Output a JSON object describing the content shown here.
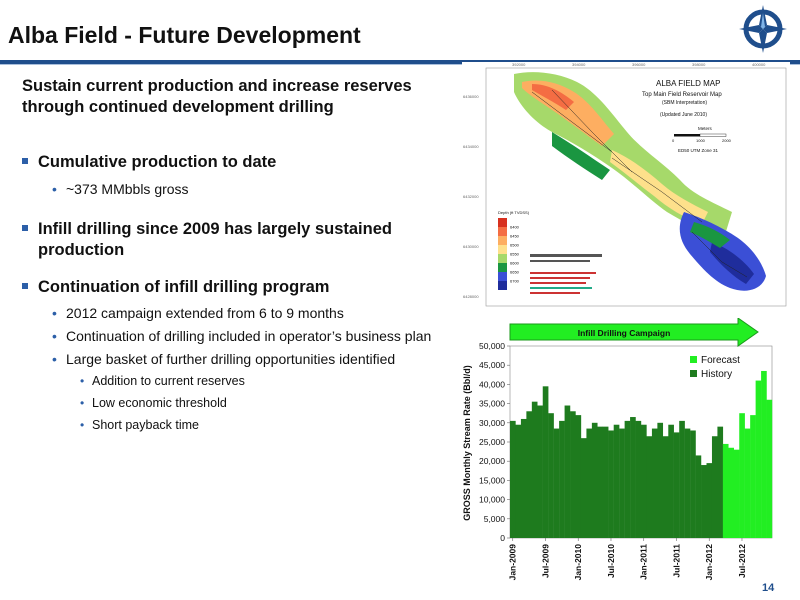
{
  "slide": {
    "title": "Alba Field - Future Development",
    "subtitle": "Sustain current production and increase reserves through continued development drilling",
    "page_number": "14"
  },
  "bullets": [
    {
      "text": "Cumulative production to date"
    },
    {
      "text": "~373 MMbbls gross"
    },
    {
      "text": "Infill drilling since 2009 has largely sustained production"
    },
    {
      "text": "Continuation of infill drilling program"
    },
    {
      "text": "2012 campaign extended from 6 to 9 months"
    },
    {
      "text": "Continuation of drilling included in operator’s business plan"
    },
    {
      "text": "Large basket of further drilling opportunities identified"
    },
    {
      "text": "Addition to current reserves"
    },
    {
      "text": "Low economic threshold"
    },
    {
      "text": "Short payback time"
    }
  ],
  "map": {
    "title": "ALBA FIELD MAP",
    "subtitle": "Top Main Field Reservoir Map",
    "note1": "(SBM Interpretation)",
    "note2": "(Updated June 2010)",
    "scale_label": "Meters",
    "scale_ticks": [
      "0",
      "1000",
      "2000"
    ],
    "datum": "ED50 UTM Zone 31",
    "legend_title": "Depth (ft TVDSS)",
    "legend_values": [
      "6400",
      "6450",
      "6500",
      "6550",
      "6600",
      "6650",
      "6700"
    ],
    "legend_colors": [
      "#d7301f",
      "#f46d43",
      "#fdae61",
      "#fee08b",
      "#a6d96a",
      "#1a9641",
      "#3b4fd6",
      "#1f2d9c"
    ],
    "top_ticks": [
      "392000",
      "394000",
      "396000",
      "398000",
      "400000"
    ],
    "left_ticks": [
      "6436000",
      "6434000",
      "6432000",
      "6430000",
      "6428000"
    ]
  },
  "chart_data": {
    "type": "bar",
    "ylabel": "GROSS Monthly Stream Rate (Bbl/d)",
    "ylim": [
      0,
      50000
    ],
    "yticks": [
      "0",
      "5,000",
      "10,000",
      "15,000",
      "20,000",
      "25,000",
      "30,000",
      "35,000",
      "40,000",
      "45,000",
      "50,000"
    ],
    "xtick_labels": [
      "Jan-2009",
      "Jul-2009",
      "Jan-2010",
      "Jul-2010",
      "Jan-2011",
      "Jul-2011",
      "Jan-2012",
      "Jul-2012"
    ],
    "banner": "Infill Drilling Campaign",
    "legend": "top-right",
    "series": [
      {
        "name": "History",
        "color": "#1e7b1e",
        "values": [
          30500,
          29500,
          31000,
          33000,
          35500,
          34500,
          39500,
          32500,
          28500,
          30500,
          34500,
          33000,
          32000,
          26000,
          28500,
          30000,
          29000,
          29000,
          28000,
          29500,
          28500,
          30500,
          31500,
          30500,
          29500,
          26500,
          28500,
          30000,
          26500,
          29500,
          27500,
          30500,
          28500,
          28000,
          21500,
          19000,
          19500,
          26500,
          29000
        ]
      },
      {
        "name": "Forecast",
        "color": "#22ee22",
        "values": [
          24500,
          23500,
          23000,
          32500,
          28500,
          32000,
          41000,
          43500,
          36000
        ]
      }
    ]
  }
}
